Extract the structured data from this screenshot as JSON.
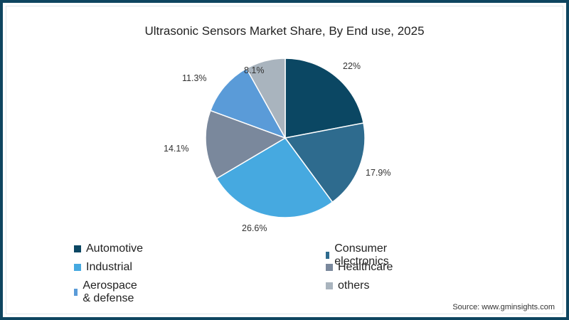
{
  "chart_data": {
    "type": "pie",
    "title": "Ultrasonic Sensors Market Share, By  End use, 2025",
    "categories": [
      "Automotive",
      "Consumer electronics",
      "Industrial",
      "Healthcare",
      "Aerospace & defense",
      "others"
    ],
    "values": [
      22,
      17.9,
      26.6,
      14.1,
      11.3,
      8.1
    ],
    "labels": [
      "22%",
      "17.9%",
      "26.6%",
      "14.1%",
      "11.3%",
      "8.1%"
    ],
    "colors": [
      "#0b4763",
      "#2e6b8e",
      "#46a9e0",
      "#7a889c",
      "#5a9bd8",
      "#a9b4be"
    ],
    "start_angle": "12 o'clock",
    "direction": "clockwise",
    "legend_position": "bottom, two columns"
  },
  "source": "Source: www.gminsights.com",
  "border_color": "#0e4560"
}
